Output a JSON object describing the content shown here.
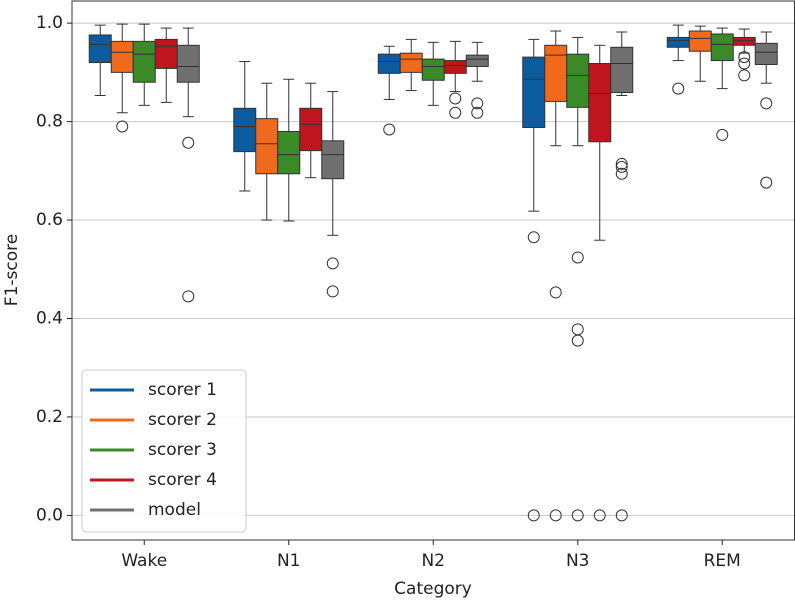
{
  "chart_data": {
    "type": "boxplot",
    "x_label": "Category",
    "y_label": "F1-score",
    "categories": [
      "Wake",
      "N1",
      "N2",
      "N3",
      "REM"
    ],
    "ylim": [
      -0.05,
      1.045
    ],
    "yticks": [
      {
        "value": 0,
        "label": "0.0"
      },
      0.2,
      0.4,
      0.6,
      0.8,
      {
        "value": 1,
        "label": "1.0"
      }
    ],
    "grid": true,
    "legend": "lower left",
    "series": [
      {
        "name": "scorer 1",
        "color": "#0b5c9e",
        "boxes": [
          {
            "whislo": 0.853,
            "q1": 0.92,
            "med": 0.957,
            "q3": 0.976,
            "whishi": 0.996
          },
          {
            "whislo": 0.659,
            "q1": 0.739,
            "med": 0.79,
            "q3": 0.827,
            "whishi": 0.922
          },
          {
            "whislo": 0.845,
            "q1": 0.898,
            "med": 0.922,
            "q3": 0.937,
            "whishi": 0.953,
            "fliers": [
              0.784
            ]
          },
          {
            "whislo": 0.618,
            "q1": 0.788,
            "med": 0.886,
            "q3": 0.931,
            "whishi": 0.967,
            "fliers": [
              0.565,
              0
            ]
          },
          {
            "whislo": 0.924,
            "q1": 0.951,
            "med": 0.965,
            "q3": 0.971,
            "whishi": 0.996,
            "fliers": [
              0.867
            ]
          }
        ]
      },
      {
        "name": "scorer 2",
        "color": "#f06a1e",
        "boxes": [
          {
            "whislo": 0.818,
            "q1": 0.9,
            "med": 0.941,
            "q3": 0.963,
            "whishi": 0.998,
            "fliers": [
              0.79
            ]
          },
          {
            "whislo": 0.6,
            "q1": 0.694,
            "med": 0.755,
            "q3": 0.806,
            "whishi": 0.878
          },
          {
            "whislo": 0.863,
            "q1": 0.9,
            "med": 0.927,
            "q3": 0.939,
            "whishi": 0.967
          },
          {
            "whislo": 0.751,
            "q1": 0.841,
            "med": 0.935,
            "q3": 0.955,
            "whishi": 0.984,
            "fliers": [
              0.453,
              0
            ]
          },
          {
            "whislo": 0.882,
            "q1": 0.943,
            "med": 0.969,
            "q3": 0.984,
            "whishi": 0.994
          }
        ]
      },
      {
        "name": "scorer 3",
        "color": "#3a8a27",
        "boxes": [
          {
            "whislo": 0.833,
            "q1": 0.88,
            "med": 0.937,
            "q3": 0.963,
            "whishi": 0.998
          },
          {
            "whislo": 0.598,
            "q1": 0.694,
            "med": 0.733,
            "q3": 0.78,
            "whishi": 0.886
          },
          {
            "whislo": 0.833,
            "q1": 0.884,
            "med": 0.912,
            "q3": 0.927,
            "whishi": 0.961
          },
          {
            "whislo": 0.751,
            "q1": 0.829,
            "med": 0.894,
            "q3": 0.937,
            "whishi": 0.971,
            "fliers": [
              0.524,
              0.378,
              0.355,
              0
            ]
          },
          {
            "whislo": 0.867,
            "q1": 0.924,
            "med": 0.957,
            "q3": 0.978,
            "whishi": 0.99,
            "fliers": [
              0.773
            ]
          }
        ]
      },
      {
        "name": "scorer 4",
        "color": "#c0141f",
        "boxes": [
          {
            "whislo": 0.839,
            "q1": 0.908,
            "med": 0.953,
            "q3": 0.967,
            "whishi": 0.99
          },
          {
            "whislo": 0.686,
            "q1": 0.741,
            "med": 0.794,
            "q3": 0.827,
            "whishi": 0.878
          },
          {
            "whislo": 0.861,
            "q1": 0.898,
            "med": 0.914,
            "q3": 0.924,
            "whishi": 0.963,
            "fliers": [
              0.847,
              0.818
            ]
          },
          {
            "whislo": 0.559,
            "q1": 0.759,
            "med": 0.857,
            "q3": 0.918,
            "whishi": 0.955,
            "fliers": [
              0
            ]
          },
          {
            "whislo": 0.939,
            "q1": 0.955,
            "med": 0.965,
            "q3": 0.971,
            "whishi": 0.988,
            "fliers": [
              0.931,
              0.918,
              0.894
            ]
          }
        ]
      },
      {
        "name": "model",
        "color": "#707070",
        "boxes": [
          {
            "whislo": 0.81,
            "q1": 0.88,
            "med": 0.912,
            "q3": 0.955,
            "whishi": 0.99,
            "fliers": [
              0.757,
              0.445
            ]
          },
          {
            "whislo": 0.569,
            "q1": 0.684,
            "med": 0.733,
            "q3": 0.761,
            "whishi": 0.861,
            "fliers": [
              0.512,
              0.455
            ]
          },
          {
            "whislo": 0.882,
            "q1": 0.912,
            "med": 0.927,
            "q3": 0.935,
            "whishi": 0.961,
            "fliers": [
              0.837,
              0.818
            ]
          },
          {
            "whislo": 0.853,
            "q1": 0.859,
            "med": 0.918,
            "q3": 0.951,
            "whishi": 0.982,
            "fliers": [
              0.714,
              0.708,
              0.694,
              0
            ]
          },
          {
            "whislo": 0.878,
            "q1": 0.916,
            "med": 0.941,
            "q3": 0.959,
            "whishi": 0.982,
            "fliers": [
              0.837,
              0.676
            ]
          }
        ]
      }
    ]
  }
}
